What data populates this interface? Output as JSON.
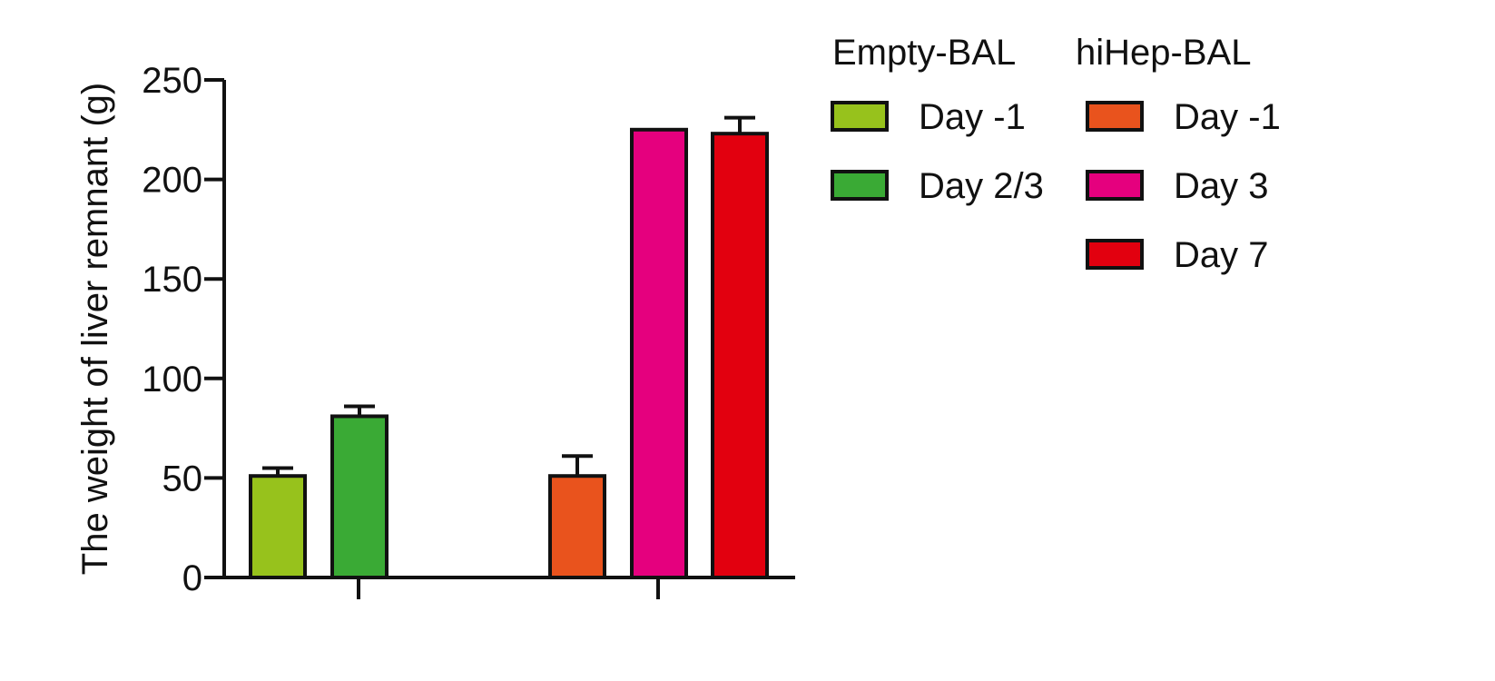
{
  "chart_data": {
    "type": "bar",
    "ylabel": "The weight of liver remnant (g)",
    "ylim": [
      0,
      250
    ],
    "yticks": [
      0,
      50,
      100,
      150,
      200,
      250
    ],
    "grid": false,
    "legend_position": "right",
    "groups": [
      {
        "name": "Empty-BAL",
        "bars": [
          {
            "label": "Day -1",
            "value": 51,
            "error": 4,
            "color": "#97c21c"
          },
          {
            "label": "Day 2/3",
            "value": 81,
            "error": 5,
            "color": "#3aaa35"
          }
        ]
      },
      {
        "name": "hiHep-BAL",
        "bars": [
          {
            "label": "Day -1",
            "value": 51,
            "error": 10,
            "color": "#e9531d"
          },
          {
            "label": "Day 3",
            "value": 225,
            "error": 0,
            "color": "#e5007e"
          },
          {
            "label": "Day 7",
            "value": 223,
            "error": 8,
            "color": "#e2000f"
          }
        ]
      }
    ]
  }
}
